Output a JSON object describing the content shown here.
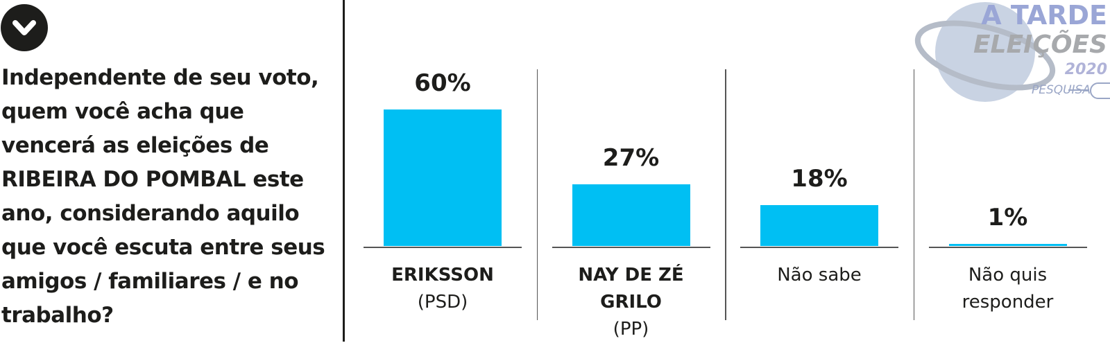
{
  "question": "Independente de seu voto, quem você acha que vencerá as eleições de RIBEIRA DO POMBAL este ano, considerando aquilo que você escuta entre seus amigos / familiares / e no trabalho?",
  "logo": {
    "brand": "A TARDE",
    "title": "ELEIÇÕES",
    "year": "2020",
    "tag": "PESQUISA"
  },
  "chart_data": {
    "type": "bar",
    "categories": [
      "ERIKSSON",
      "NAY DE ZÉ GRILO",
      "Não sabe",
      "Não quis responder"
    ],
    "parties": [
      "(PSD)",
      "(PP)",
      null,
      null
    ],
    "values": [
      60,
      27,
      18,
      1
    ],
    "value_labels": [
      "60%",
      "27%",
      "18%",
      "1%"
    ],
    "color": "#00bff3"
  }
}
